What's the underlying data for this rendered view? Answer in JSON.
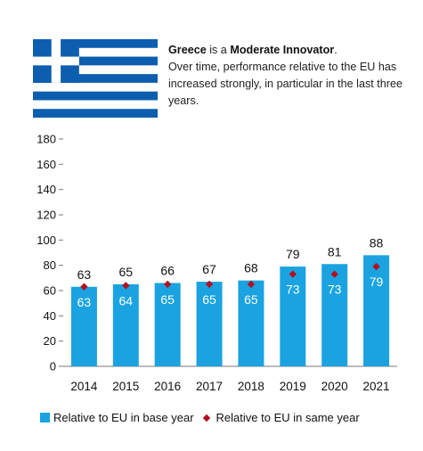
{
  "header": {
    "country": "Greece",
    "is_a": " is a ",
    "group": "Moderate Innovator",
    "period": ".",
    "description": "Over time, performance relative to the EU has increased strongly, in particular in the last three years."
  },
  "colors": {
    "bar": "#1aa3e0",
    "marker": "#b01020",
    "flag_blue": "#0d5eaf",
    "flag_white": "#ffffff"
  },
  "chart_data": {
    "type": "bar",
    "categories": [
      "2014",
      "2015",
      "2016",
      "2017",
      "2018",
      "2019",
      "2020",
      "2021"
    ],
    "ylim": [
      0,
      180
    ],
    "yticks": [
      0,
      20,
      40,
      60,
      80,
      100,
      120,
      140,
      160,
      180
    ],
    "grid": false,
    "legend_position": "bottom",
    "series": [
      {
        "name": "Relative to EU in base year",
        "type": "bar",
        "values": [
          63,
          65,
          66,
          67,
          68,
          79,
          81,
          88
        ]
      },
      {
        "name": "Relative to EU in same year",
        "type": "marker",
        "values": [
          63,
          64,
          65,
          65,
          65,
          73,
          73,
          79
        ]
      }
    ]
  }
}
